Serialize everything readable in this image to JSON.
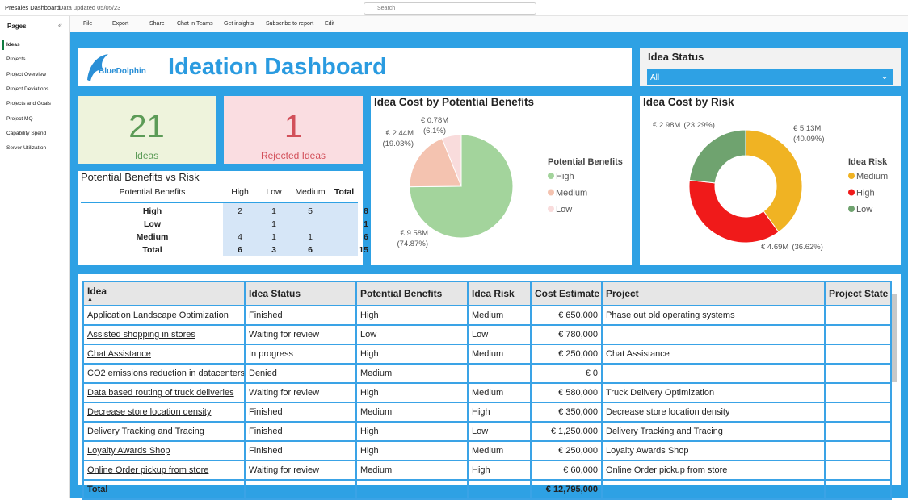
{
  "topbar": {
    "app_name": "Presales Dashboard",
    "data_updated": "Data updated 05/05/23",
    "search": "Search"
  },
  "toolbar": [
    "File",
    "Export",
    "Share",
    "Chat in Teams",
    "Get insights",
    "Subscribe to report",
    "Edit"
  ],
  "pages": {
    "title": "Pages",
    "items": [
      "Ideas",
      "Projects",
      "Project Overview",
      "Project Deviations",
      "Projects and Goals",
      "Project MQ",
      "Capability Spend",
      "Server Utilization"
    ]
  },
  "header": {
    "logo": "BlueDolphin",
    "title": "Ideation Dashboard"
  },
  "filter": {
    "title": "Idea Status",
    "value": "All"
  },
  "kpis": [
    {
      "value": 21,
      "label": "Ideas"
    },
    {
      "value": 1,
      "label": "Rejected Ideas"
    }
  ],
  "matrix": {
    "title": "Potential Benefits vs Risk",
    "row_header": "Potential Benefits",
    "columns": [
      "High",
      "Low",
      "Medium",
      "Total"
    ],
    "rows": [
      [
        "High",
        2,
        1,
        5,
        8
      ],
      [
        "Low",
        null,
        1,
        null,
        1
      ],
      [
        "Medium",
        4,
        1,
        1,
        6
      ],
      [
        "Total",
        6,
        3,
        6,
        15
      ]
    ]
  },
  "chart_data": [
    {
      "type": "pie",
      "title": "Idea Cost by Potential Benefits",
      "legend_title": "Potential Benefits",
      "categories": [
        "High",
        "Medium",
        "Low"
      ],
      "values": [
        9.58,
        2.44,
        0.78
      ],
      "value_labels": [
        "€ 9.58M",
        "€ 2.44M",
        "€ 0.78M"
      ],
      "percent_labels": [
        "(74.87%)",
        "(19.03%)",
        "(6.1%)"
      ],
      "colors": [
        "#a3d49c",
        "#f4c3b0",
        "#f9dcdc"
      ]
    },
    {
      "type": "donut",
      "title": "Idea Cost by Risk",
      "legend_title": "Idea Risk",
      "categories": [
        "Medium",
        "High",
        "Low"
      ],
      "values": [
        5.13,
        4.69,
        2.98
      ],
      "value_labels": [
        "€ 5.13M",
        "€ 4.69M",
        "€ 2.98M"
      ],
      "percent_labels": [
        "(40.09%)",
        "(36.62%)",
        "(23.29%)"
      ],
      "colors": [
        "#f0b323",
        "#f01a1a",
        "#6fa36f"
      ]
    }
  ],
  "table": {
    "columns": [
      "Idea",
      "Idea Status",
      "Potential Benefits",
      "Idea Risk",
      "Cost Estimate",
      "Project",
      "Project State"
    ],
    "rows": [
      [
        "Application Landscape Optimization",
        "Finished",
        "High",
        "Medium",
        "€ 650,000",
        "Phase out old operating systems",
        null
      ],
      [
        "Assisted shopping in stores",
        "Waiting for review",
        "Low",
        "Low",
        "€ 780,000",
        null,
        null
      ],
      [
        "Chat Assistance",
        "In progress",
        "High",
        "Medium",
        "€ 250,000",
        "Chat Assistance",
        null
      ],
      [
        "CO2 emissions reduction in datacenters",
        "Denied",
        "Medium",
        null,
        "€ 0",
        null,
        null
      ],
      [
        "Data based routing of truck deliveries",
        "Waiting for review",
        "High",
        "Medium",
        "€ 580,000",
        "Truck Delivery Optimization",
        null
      ],
      [
        "Decrease store location density",
        "Finished",
        "Medium",
        "High",
        "€ 350,000",
        "Decrease store location density",
        null
      ],
      [
        "Delivery Tracking and Tracing",
        "Finished",
        "High",
        "Low",
        "€ 1,250,000",
        "Delivery Tracking and Tracing",
        null
      ],
      [
        "Loyalty Awards Shop",
        "Finished",
        "High",
        "Medium",
        "€ 250,000",
        "Loyalty Awards Shop",
        null
      ],
      [
        "Online Order pickup from store",
        "Waiting for review",
        "Medium",
        "High",
        "€ 60,000",
        "Online Order pickup from store",
        null
      ]
    ],
    "total": [
      "Total",
      null,
      null,
      null,
      "€ 12,795,000",
      null,
      null
    ]
  }
}
